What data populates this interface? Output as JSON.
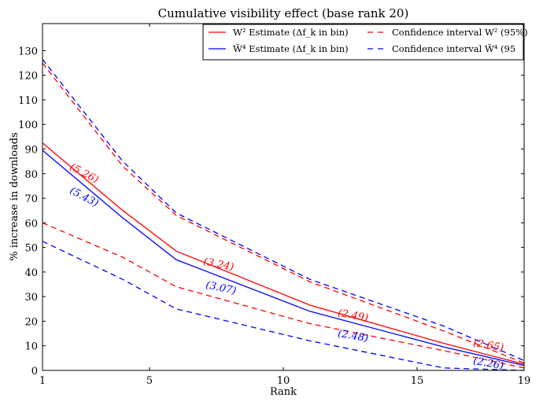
{
  "chart_data": {
    "type": "line",
    "title": "Cumulative visibility effect (base rank 20)",
    "xlabel": "Rank",
    "ylabel": "% increase in downloads",
    "xlim": [
      1,
      19
    ],
    "ylim": [
      0,
      141
    ],
    "xticks": [
      1,
      5,
      10,
      15,
      19
    ],
    "yticks": [
      0,
      10,
      20,
      30,
      40,
      50,
      60,
      70,
      80,
      90,
      100,
      110,
      120,
      130
    ],
    "grid": false,
    "legend_position": "top-right",
    "x": [
      1,
      4,
      6,
      11,
      16,
      19
    ],
    "series": [
      {
        "name": "W² Estimate (Δf_k in bin)",
        "color": "#ff0000",
        "style": "solid",
        "values": [
          92.5,
          65,
          48.5,
          26.5,
          11,
          2.5
        ]
      },
      {
        "name": "W̃⁴ Estimate (Δf_k in bin)",
        "color": "#0000ff",
        "style": "solid",
        "values": [
          89.5,
          62,
          45,
          24,
          9.5,
          2
        ]
      },
      {
        "name": "Confidence interval W² (95%)",
        "color": "#ff0000",
        "style": "dashed",
        "values": [
          125,
          83,
          63,
          36,
          16,
          3
        ]
      },
      {
        "name": "Confidence interval W̃⁴ (95",
        "color": "#0000ff",
        "style": "dashed",
        "values": [
          126.5,
          85,
          64,
          37,
          18,
          4
        ]
      },
      {
        "name": "",
        "color": "#ff0000",
        "style": "dashed",
        "values": [
          60,
          46,
          34,
          19,
          8,
          1
        ]
      },
      {
        "name": "",
        "color": "#0000ff",
        "style": "dashed",
        "values": [
          52.5,
          37,
          25,
          12,
          1,
          0
        ]
      }
    ],
    "annotations": [
      {
        "text": "(5.26)",
        "color": "#ff0000"
      },
      {
        "text": "(5.43)",
        "color": "#0000ff"
      },
      {
        "text": "(3.24)",
        "color": "#ff0000"
      },
      {
        "text": "(3.07)",
        "color": "#0000ff"
      },
      {
        "text": "(2.49)",
        "color": "#ff0000"
      },
      {
        "text": "(2.48)",
        "color": "#0000ff"
      },
      {
        "text": "(2.65)",
        "color": "#ff0000"
      },
      {
        "text": "(2.26)",
        "color": "#0000ff"
      }
    ]
  }
}
